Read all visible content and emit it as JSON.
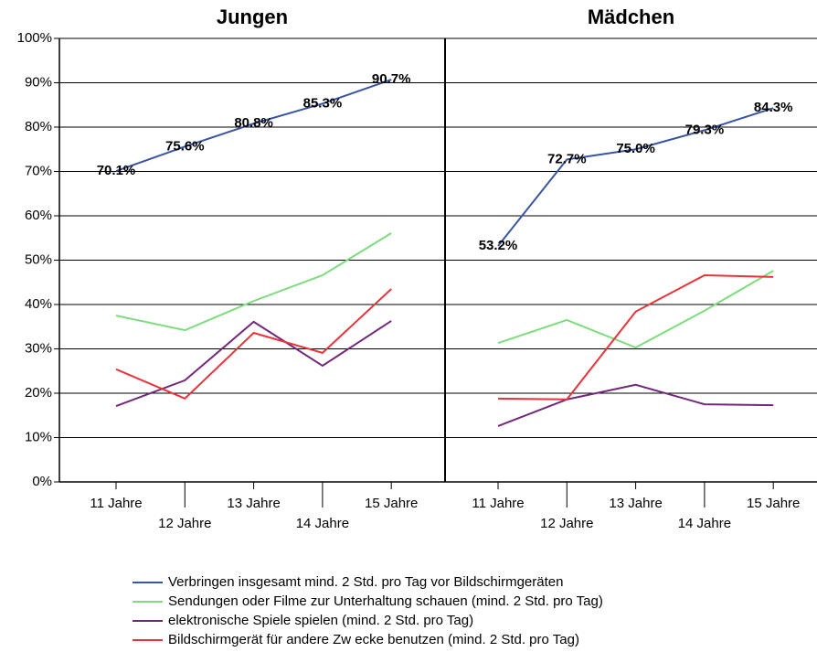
{
  "chart_data": [
    {
      "type": "line",
      "title": "Jungen",
      "categories": [
        "11 Jahre",
        "12 Jahre",
        "13 Jahre",
        "14 Jahre",
        "15 Jahre"
      ],
      "ylim": [
        0,
        100
      ],
      "yticks": [
        {
          "value": 0,
          "label": "0%"
        },
        {
          "value": 10,
          "label": "10%"
        },
        {
          "value": 20,
          "label": "20%"
        },
        {
          "value": 30,
          "label": "30%"
        },
        {
          "value": 40,
          "label": "40%"
        },
        {
          "value": 50,
          "label": "50%"
        },
        {
          "value": 60,
          "label": "60%"
        },
        {
          "value": 70,
          "label": "70%"
        },
        {
          "value": 80,
          "label": "80%"
        },
        {
          "value": 90,
          "label": "90%"
        },
        {
          "value": 100,
          "label": "100%"
        }
      ],
      "series": [
        {
          "name": "Verbringen insgesamt mind. 2 Std. pro Tag vor Bildschirmgeräten",
          "color": "#3a55a0",
          "values": [
            70.1,
            75.6,
            80.8,
            85.3,
            90.7
          ],
          "value_labels": [
            "70.1%",
            "75.6%",
            "80.8%",
            "85.3%",
            "90.7%"
          ]
        },
        {
          "name": "Sendungen oder Filme zur Unterhaltung schauen (mind. 2 Std. pro Tag)",
          "color": "#7ddc7d",
          "values": [
            37.5,
            34.2,
            40.8,
            46.6,
            56.1
          ]
        },
        {
          "name": "elektronische Spiele spielen (mind. 2 Std. pro Tag)",
          "color": "#72287a",
          "values": [
            17.1,
            22.9,
            36.1,
            26.2,
            36.3
          ]
        },
        {
          "name": "Bildschirmgerät für andere Zw ecke benutzen (mind. 2 Std. pro Tag)",
          "color": "#e8333a",
          "values": [
            25.4,
            18.8,
            33.6,
            29.1,
            43.5
          ]
        }
      ]
    },
    {
      "type": "line",
      "title": "Mädchen",
      "categories": [
        "11 Jahre",
        "12 Jahre",
        "13 Jahre",
        "14 Jahre",
        "15 Jahre"
      ],
      "series": [
        {
          "color": "#3a55a0",
          "values": [
            53.2,
            72.7,
            75.0,
            79.3,
            84.3
          ],
          "value_labels": [
            "53.2%",
            "72.7%",
            "75.0%",
            "79.3%",
            "84.3%"
          ]
        },
        {
          "color": "#7ddc7d",
          "values": [
            31.3,
            36.5,
            30.3,
            38.6,
            47.6
          ]
        },
        {
          "color": "#72287a",
          "values": [
            12.6,
            18.6,
            21.9,
            17.5,
            17.3
          ]
        },
        {
          "color": "#e8333a",
          "values": [
            18.8,
            18.6,
            38.4,
            46.6,
            46.2
          ]
        }
      ]
    }
  ]
}
